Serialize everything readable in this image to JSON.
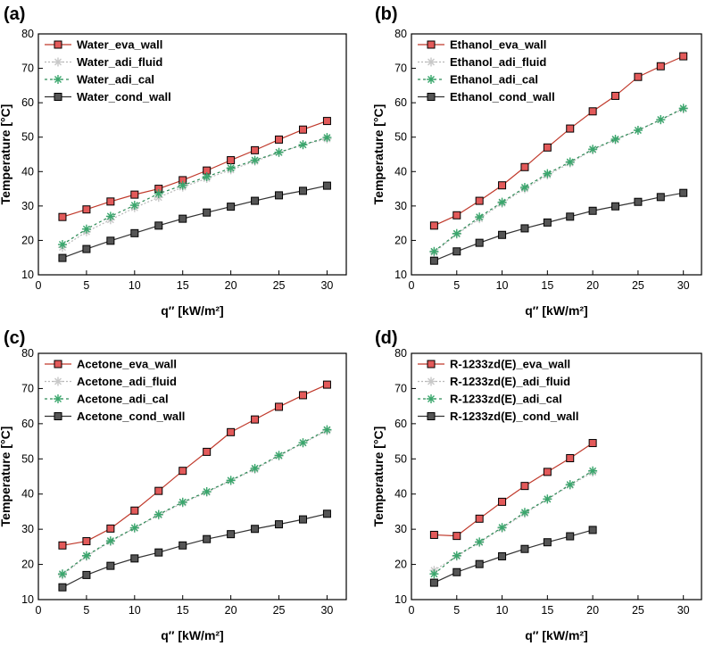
{
  "styles": {
    "eva": {
      "line": "#c0392b",
      "fill": "#e35a5a",
      "marker": "square",
      "dash": ""
    },
    "adi_fluid": {
      "line": "#b8b8b8",
      "fill": "#c8c8c8",
      "marker": "asterisk",
      "dash": "2,2"
    },
    "adi_cal": {
      "line": "#2e8b57",
      "fill": "#3aa76d",
      "marker": "asterisk",
      "dash": "3,3"
    },
    "cond": {
      "line": "#333333",
      "fill": "#555555",
      "marker": "square",
      "dash": ""
    }
  },
  "chart_data": [
    {
      "type": "line",
      "panel": "(a)",
      "xlabel": "q″ [kW/m²]",
      "ylabel": "Temperature [°C]",
      "xlim": [
        0,
        32
      ],
      "ylim": [
        10,
        80
      ],
      "xticks": [
        "0",
        "5",
        "10",
        "15",
        "20",
        "25",
        "30"
      ],
      "yticks": [
        "10",
        "20",
        "30",
        "40",
        "50",
        "60",
        "70",
        "80"
      ],
      "legend_position": "top-left",
      "x": [
        2.5,
        5,
        7.5,
        10,
        12.5,
        15,
        17.5,
        20,
        22.5,
        25,
        27.5,
        30
      ],
      "series": [
        {
          "name": "Water_eva_wall",
          "style": "eva",
          "values": [
            26.8,
            29.0,
            31.3,
            33.3,
            35.0,
            37.5,
            40.3,
            43.3,
            46.2,
            49.3,
            52.2,
            54.7
          ]
        },
        {
          "name": "Water_adi_fluid",
          "style": "adi_fluid",
          "values": [
            18.0,
            22.5,
            26.0,
            29.5,
            32.5,
            35.5,
            38.0,
            40.5,
            43.0,
            45.5,
            47.8,
            49.5
          ]
        },
        {
          "name": "Water_adi_cal",
          "style": "adi_cal",
          "values": [
            18.8,
            23.3,
            27.0,
            30.2,
            33.6,
            36.0,
            38.5,
            41.0,
            43.3,
            45.6,
            47.8,
            49.9
          ]
        },
        {
          "name": "Water_cond_wall",
          "style": "cond",
          "values": [
            14.9,
            17.5,
            19.9,
            22.1,
            24.3,
            26.3,
            28.1,
            29.8,
            31.5,
            33.1,
            34.4,
            35.9
          ]
        }
      ]
    },
    {
      "type": "line",
      "panel": "(b)",
      "xlabel": "q″ [kW/m²]",
      "ylabel": "Temperature [°C]",
      "xlim": [
        0,
        32
      ],
      "ylim": [
        10,
        80
      ],
      "xticks": [
        "0",
        "5",
        "10",
        "15",
        "20",
        "25",
        "30"
      ],
      "yticks": [
        "10",
        "20",
        "30",
        "40",
        "50",
        "60",
        "70",
        "80"
      ],
      "legend_position": "top-left",
      "x": [
        2.5,
        5,
        7.5,
        10,
        12.5,
        15,
        17.5,
        20,
        22.5,
        25,
        27.5,
        30
      ],
      "series": [
        {
          "name": "Ethanol_eva_wall",
          "style": "eva",
          "values": [
            24.3,
            27.3,
            31.5,
            36.0,
            41.3,
            47.0,
            52.5,
            57.5,
            62.0,
            67.5,
            70.6,
            73.5
          ]
        },
        {
          "name": "Ethanol_adi_fluid",
          "style": "adi_fluid",
          "values": [
            16.5,
            21.8,
            26.3,
            30.8,
            35.0,
            39.0,
            42.5,
            46.3,
            49.2,
            52.0,
            55.0,
            58.2
          ]
        },
        {
          "name": "Ethanol_adi_cal",
          "style": "adi_cal",
          "values": [
            16.8,
            22.0,
            26.8,
            31.1,
            35.4,
            39.4,
            42.8,
            46.5,
            49.4,
            52.0,
            55.1,
            58.4
          ]
        },
        {
          "name": "Ethanol_cond_wall",
          "style": "cond",
          "values": [
            14.1,
            16.8,
            19.3,
            21.6,
            23.5,
            25.2,
            26.9,
            28.6,
            29.9,
            31.2,
            32.6,
            33.8
          ]
        }
      ]
    },
    {
      "type": "line",
      "panel": "(c)",
      "xlabel": "q″ [kW/m²]",
      "ylabel": "Temperature [°C]",
      "xlim": [
        0,
        32
      ],
      "ylim": [
        10,
        80
      ],
      "xticks": [
        "0",
        "5",
        "10",
        "15",
        "20",
        "25",
        "30"
      ],
      "yticks": [
        "10",
        "20",
        "30",
        "40",
        "50",
        "60",
        "70",
        "80"
      ],
      "legend_position": "top-left",
      "x": [
        2.5,
        5,
        7.5,
        10,
        12.5,
        15,
        17.5,
        20,
        22.5,
        25,
        27.5,
        30
      ],
      "series": [
        {
          "name": "Acetone_eva_wall",
          "style": "eva",
          "values": [
            25.4,
            26.6,
            30.2,
            35.3,
            40.9,
            46.6,
            52.0,
            57.6,
            61.2,
            64.8,
            68.1,
            71.1
          ]
        },
        {
          "name": "Acetone_adi_fluid",
          "style": "adi_fluid",
          "values": [
            17.0,
            22.3,
            26.5,
            30.3,
            34.0,
            37.5,
            40.5,
            43.8,
            47.0,
            50.8,
            54.5,
            58.0
          ]
        },
        {
          "name": "Acetone_adi_cal",
          "style": "adi_cal",
          "values": [
            17.3,
            22.5,
            26.7,
            30.4,
            34.2,
            37.7,
            40.7,
            43.9,
            47.3,
            51.0,
            54.6,
            58.3
          ]
        },
        {
          "name": "Acetone_cond_wall",
          "style": "cond",
          "values": [
            13.5,
            17.0,
            19.6,
            21.7,
            23.4,
            25.4,
            27.2,
            28.6,
            30.1,
            31.4,
            32.8,
            34.4
          ]
        }
      ]
    },
    {
      "type": "line",
      "panel": "(d)",
      "xlabel": "q″ [kW/m²]",
      "ylabel": "Temperature [°C]",
      "xlim": [
        0,
        32
      ],
      "ylim": [
        10,
        80
      ],
      "xticks": [
        "0",
        "5",
        "10",
        "15",
        "20",
        "25",
        "30"
      ],
      "yticks": [
        "10",
        "20",
        "30",
        "40",
        "50",
        "60",
        "70",
        "80"
      ],
      "legend_position": "top-left",
      "x": [
        2.5,
        5,
        7.5,
        10,
        12.5,
        15,
        17.5,
        20
      ],
      "series": [
        {
          "name": "R-1233zd(E)_eva_wall",
          "style": "eva",
          "values": [
            28.4,
            28.1,
            33.0,
            37.8,
            42.3,
            46.3,
            50.2,
            54.5
          ]
        },
        {
          "name": "R-1233zd(E)_adi_fluid",
          "style": "adi_fluid",
          "values": [
            18.3,
            22.3,
            26.2,
            30.3,
            34.5,
            38.5,
            42.5,
            46.2
          ]
        },
        {
          "name": "R-1233zd(E)_adi_cal",
          "style": "adi_cal",
          "values": [
            17.3,
            22.5,
            26.4,
            30.5,
            34.8,
            38.6,
            42.7,
            46.6
          ]
        },
        {
          "name": "R-1233zd(E)_cond_wall",
          "style": "cond",
          "values": [
            14.8,
            17.8,
            20.1,
            22.3,
            24.4,
            26.3,
            28.0,
            29.8
          ]
        }
      ]
    }
  ]
}
